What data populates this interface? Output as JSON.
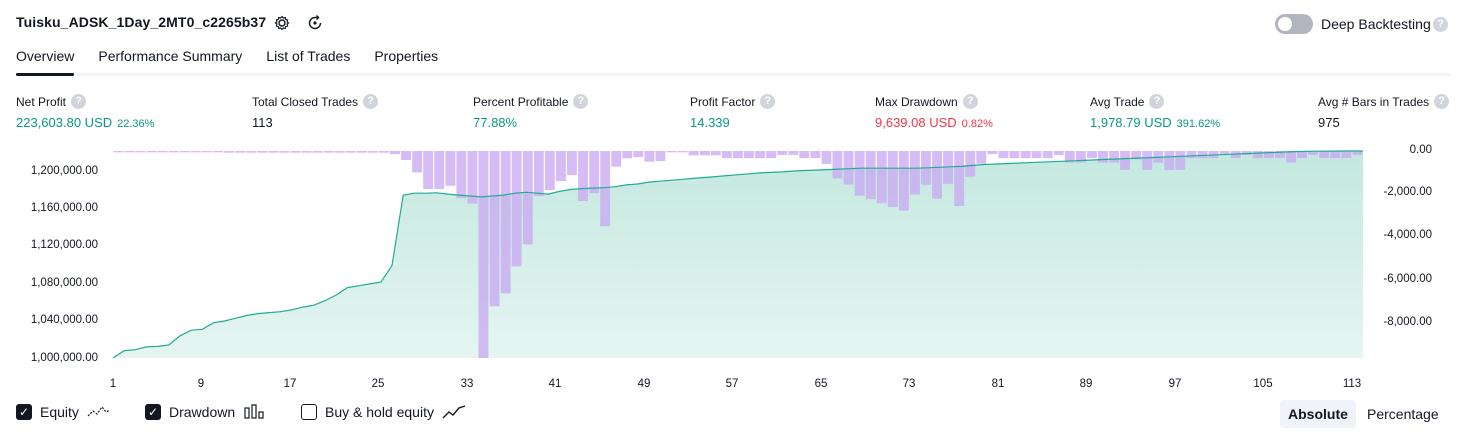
{
  "header": {
    "title": "Tuisku_ADSK_1Day_2MT0_c2265b37",
    "deep_backtesting_label": "Deep Backtesting",
    "help_glyph": "?"
  },
  "tabs": [
    "Overview",
    "Performance Summary",
    "List of Trades",
    "Properties"
  ],
  "stats": [
    {
      "label": "Net Profit",
      "value": "223,603.80 USD",
      "pct": "22.36%",
      "color": "green"
    },
    {
      "label": "Total Closed Trades",
      "value": "113",
      "pct": "",
      "color": ""
    },
    {
      "label": "Percent Profitable",
      "value": "77.88%",
      "pct": "",
      "color": "green"
    },
    {
      "label": "Profit Factor",
      "value": "14.339",
      "pct": "",
      "color": "green"
    },
    {
      "label": "Max Drawdown",
      "value": "9,639.08 USD",
      "pct": "0.82%",
      "color": "red"
    },
    {
      "label": "Avg Trade",
      "value": "1,978.79 USD",
      "pct": "391.62%",
      "color": "green"
    },
    {
      "label": "Avg # Bars in Trades",
      "value": "975",
      "pct": "",
      "color": ""
    }
  ],
  "colors": {
    "profit": "#089981",
    "loss": "#f23645",
    "equity_line": "#22ab94",
    "equity_fill": "#c9ebe3",
    "drawdown_bar": "#c9a9f2"
  },
  "legend": {
    "equity": "Equity",
    "drawdown": "Drawdown",
    "buy_hold": "Buy & hold equity",
    "equity_checked": true,
    "drawdown_checked": true,
    "buy_hold_checked": false
  },
  "scale_toggle": {
    "absolute": "Absolute",
    "percentage": "Percentage",
    "selected": "Absolute"
  },
  "chart_data": {
    "type": "area",
    "left_axis_ticks": [
      "1,200,000.00",
      "1,160,000.00",
      "1,120,000.00",
      "1,080,000.00",
      "1,040,000.00",
      "1,000,000.00"
    ],
    "right_axis_ticks": [
      "0.00",
      "-2,000.00",
      "-4,000.00",
      "-6,000.00",
      "-8,000.00"
    ],
    "x_ticks": [
      "1",
      "9",
      "17",
      "25",
      "33",
      "41",
      "49",
      "57",
      "65",
      "73",
      "81",
      "89",
      "97",
      "105",
      "113"
    ],
    "equity_ylim": [
      1000000,
      1223604
    ],
    "drawdown_ylim": [
      -9639,
      0
    ],
    "series": [
      {
        "name": "Equity",
        "axis": "left",
        "values": [
          1000000,
          1008000,
          1009000,
          1012000,
          1012500,
          1014000,
          1024000,
          1030000,
          1031000,
          1038000,
          1040000,
          1043000,
          1046000,
          1048000,
          1049000,
          1050000,
          1052000,
          1055000,
          1057000,
          1062000,
          1068000,
          1076000,
          1078000,
          1080000,
          1082000,
          1100000,
          1176000,
          1178000,
          1178000,
          1178500,
          1177000,
          1176000,
          1175000,
          1174000,
          1175000,
          1176000,
          1178000,
          1179000,
          1178000,
          1177000,
          1180000,
          1182000,
          1183000,
          1183500,
          1184000,
          1185000,
          1187000,
          1188000,
          1190000,
          1191000,
          1192000,
          1193000,
          1194000,
          1195000,
          1196000,
          1197000,
          1198000,
          1199000,
          1200000,
          1200500,
          1201000,
          1202000,
          1202500,
          1203000,
          1203500,
          1204000,
          1204500,
          1205000,
          1205000,
          1205000,
          1205000,
          1205000,
          1205000,
          1205500,
          1206000,
          1206500,
          1207000,
          1208000,
          1209000,
          1209500,
          1210000,
          1210500,
          1211000,
          1211500,
          1212000,
          1212500,
          1213000,
          1213500,
          1214000,
          1214500,
          1215000,
          1215500,
          1216000,
          1216500,
          1217000,
          1217500,
          1218000,
          1218500,
          1219000,
          1219500,
          1220000,
          1220500,
          1221000,
          1221500,
          1222000,
          1222500,
          1223000,
          1223200,
          1223400,
          1223500,
          1223550,
          1223580,
          1223604
        ]
      },
      {
        "name": "Drawdown",
        "axis": "right",
        "values": [
          -60,
          -60,
          -60,
          -60,
          -60,
          -60,
          -60,
          -60,
          -60,
          -60,
          -80,
          -80,
          -80,
          -80,
          -80,
          -80,
          -80,
          -80,
          -80,
          -80,
          -80,
          -80,
          -80,
          -80,
          -80,
          -150,
          -420,
          -1000,
          -1780,
          -1770,
          -1620,
          -2200,
          -2450,
          -9639,
          -7230,
          -6630,
          -5370,
          -4350,
          -2100,
          -1820,
          -1400,
          -1120,
          -2330,
          -1960,
          -3500,
          -730,
          -340,
          -280,
          -500,
          -470,
          -60,
          -60,
          -200,
          -200,
          -200,
          -330,
          -330,
          -330,
          -330,
          -330,
          -180,
          -180,
          -330,
          -330,
          -600,
          -1280,
          -1560,
          -2080,
          -2240,
          -2430,
          -2610,
          -2780,
          -2030,
          -1570,
          -2220,
          -1530,
          -2560,
          -1200,
          -590,
          -140,
          -330,
          -330,
          -330,
          -330,
          -330,
          -180,
          -540,
          -540,
          -330,
          -540,
          -540,
          -880,
          -390,
          -880,
          -540,
          -880,
          -880,
          -330,
          -330,
          -330,
          -180,
          -330,
          -180,
          -330,
          -330,
          -330,
          -540,
          -330,
          -180,
          -330,
          -330,
          -330,
          -180
        ]
      }
    ]
  }
}
